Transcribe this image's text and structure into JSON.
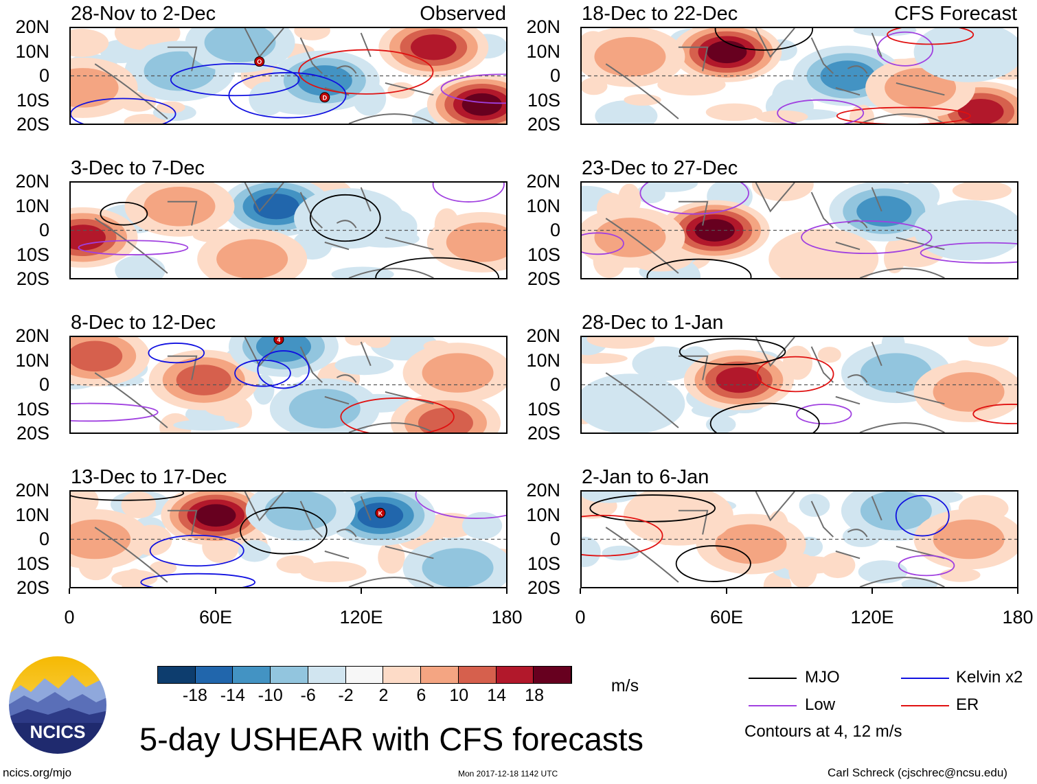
{
  "header": {
    "observed_label": "Observed",
    "forecast_label": "CFS Forecast"
  },
  "panels": [
    {
      "title": "28-Nov to 2-Dec",
      "kind": "observed"
    },
    {
      "title": "3-Dec to 7-Dec",
      "kind": "observed"
    },
    {
      "title": "8-Dec to 12-Dec",
      "kind": "observed"
    },
    {
      "title": "13-Dec to 17-Dec",
      "kind": "observed"
    },
    {
      "title": "18-Dec to 22-Dec",
      "kind": "forecast"
    },
    {
      "title": "23-Dec to 27-Dec",
      "kind": "forecast"
    },
    {
      "title": "28-Dec to 1-Jan",
      "kind": "forecast"
    },
    {
      "title": "2-Jan to 6-Jan",
      "kind": "forecast"
    }
  ],
  "axes": {
    "lat_ticks": [
      "20N",
      "10N",
      "0",
      "10S",
      "20S"
    ],
    "lon_ticks": [
      "0",
      "60E",
      "120E",
      "180"
    ]
  },
  "colorbar": {
    "labels": [
      "-18",
      "-14",
      "-10",
      "-6",
      "-2",
      "2",
      "6",
      "10",
      "14",
      "18"
    ],
    "colors": [
      "#0d3d6e",
      "#2166ac",
      "#4393c3",
      "#92c5de",
      "#d1e5f0",
      "#f7f7f7",
      "#fddbc7",
      "#f4a582",
      "#d6604d",
      "#b2182b",
      "#67001f"
    ],
    "units": "m/s"
  },
  "legend": {
    "items": [
      {
        "label": "MJO",
        "color": "#000000"
      },
      {
        "label": "Kelvin x2",
        "color": "#1010e0"
      },
      {
        "label": "Low",
        "color": "#a040e0"
      },
      {
        "label": "ER",
        "color": "#e01010"
      }
    ],
    "note": "Contours at 4, 12 m/s"
  },
  "logo": {
    "text": "NCICS"
  },
  "footer": {
    "title": "5-day USHEAR with CFS forecasts",
    "url": "ncics.org/mjo",
    "timestamp": "Mon 2017-12-18 1142 UTC",
    "author": "Carl Schreck (cjschrec@ncsu.edu)"
  },
  "storm_markers": [
    {
      "panel": 0,
      "label": "O"
    },
    {
      "panel": 0,
      "label": "D"
    },
    {
      "panel": 2,
      "label": "4"
    },
    {
      "panel": 3,
      "label": "K"
    }
  ],
  "chart_data": {
    "type": "heatmap",
    "title": "5-day USHEAR with CFS forecasts",
    "variable": "Zonal wind shear anomaly",
    "units": "m/s",
    "lon_range": [
      0,
      180
    ],
    "lat_range": [
      -20,
      20
    ],
    "contour_levels_ms": [
      4,
      12
    ],
    "anomaly_blobs": [
      {
        "panel": 0,
        "features": [
          {
            "lon": 45,
            "lat": 2,
            "value": -8
          },
          {
            "lon": 105,
            "lat": -2,
            "value": -12
          },
          {
            "lon": 150,
            "lat": 12,
            "value": 16
          },
          {
            "lon": 170,
            "lat": -12,
            "value": 20
          },
          {
            "lon": 5,
            "lat": -5,
            "value": 10
          },
          {
            "lon": 70,
            "lat": 14,
            "value": -8
          }
        ]
      },
      {
        "panel": 1,
        "features": [
          {
            "lon": 85,
            "lat": 10,
            "value": -18
          },
          {
            "lon": 5,
            "lat": -3,
            "value": 18
          },
          {
            "lon": 45,
            "lat": 10,
            "value": 10
          },
          {
            "lon": 115,
            "lat": 5,
            "value": -6
          },
          {
            "lon": 170,
            "lat": -5,
            "value": 10
          },
          {
            "lon": 75,
            "lat": -12,
            "value": 10
          }
        ]
      },
      {
        "panel": 2,
        "features": [
          {
            "lon": 55,
            "lat": 2,
            "value": 14
          },
          {
            "lon": 88,
            "lat": 16,
            "value": -14
          },
          {
            "lon": 10,
            "lat": 12,
            "value": 12
          },
          {
            "lon": 105,
            "lat": -10,
            "value": -10
          },
          {
            "lon": 160,
            "lat": 5,
            "value": 8
          },
          {
            "lon": 155,
            "lat": -16,
            "value": 14
          }
        ]
      },
      {
        "panel": 3,
        "features": [
          {
            "lon": 60,
            "lat": 10,
            "value": 20
          },
          {
            "lon": 128,
            "lat": 10,
            "value": -18
          },
          {
            "lon": 95,
            "lat": 12,
            "value": -10
          },
          {
            "lon": 10,
            "lat": 0,
            "value": 10
          },
          {
            "lon": 160,
            "lat": -12,
            "value": -10
          }
        ]
      },
      {
        "panel": 4,
        "features": [
          {
            "lon": 60,
            "lat": 10,
            "value": 20
          },
          {
            "lon": 110,
            "lat": 0,
            "value": -12
          },
          {
            "lon": 165,
            "lat": -15,
            "value": 18
          },
          {
            "lon": 140,
            "lat": -5,
            "value": 8
          },
          {
            "lon": 20,
            "lat": 8,
            "value": 8
          },
          {
            "lon": 160,
            "lat": 10,
            "value": -6
          }
        ]
      },
      {
        "panel": 5,
        "features": [
          {
            "lon": 55,
            "lat": 0,
            "value": 20
          },
          {
            "lon": 125,
            "lat": 8,
            "value": -12
          },
          {
            "lon": 20,
            "lat": -3,
            "value": 10
          },
          {
            "lon": 160,
            "lat": 0,
            "value": -6
          },
          {
            "lon": 100,
            "lat": -12,
            "value": 4
          }
        ]
      },
      {
        "panel": 6,
        "features": [
          {
            "lon": 65,
            "lat": 2,
            "value": 18
          },
          {
            "lon": 130,
            "lat": 5,
            "value": -10
          },
          {
            "lon": 160,
            "lat": -3,
            "value": 8
          },
          {
            "lon": 20,
            "lat": -8,
            "value": -4
          }
        ]
      },
      {
        "panel": 7,
        "features": [
          {
            "lon": 70,
            "lat": -2,
            "value": 8
          },
          {
            "lon": 130,
            "lat": 12,
            "value": -8
          },
          {
            "lon": 160,
            "lat": 0,
            "value": 8
          },
          {
            "lon": 40,
            "lat": 10,
            "value": 6
          }
        ]
      }
    ]
  }
}
